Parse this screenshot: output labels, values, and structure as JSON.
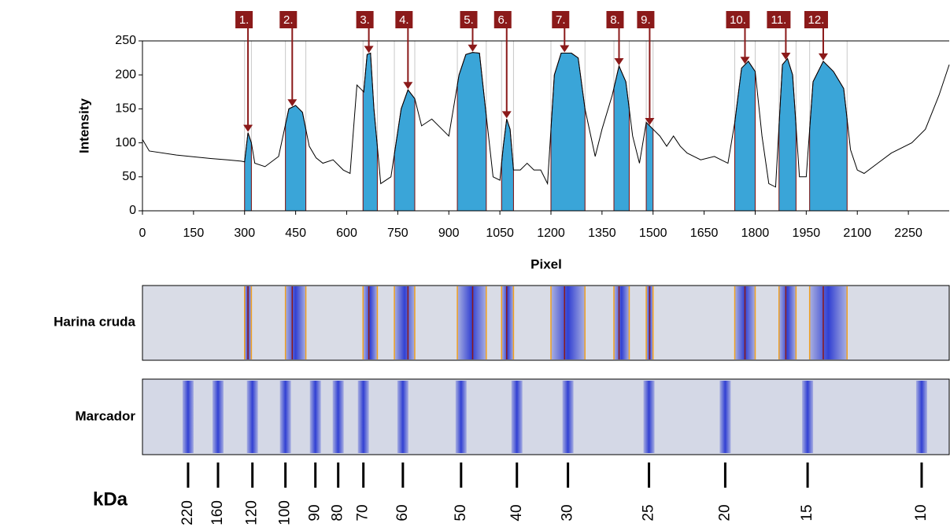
{
  "chart_data": {
    "type": "line",
    "y_label": "Intensity",
    "x_label": "Pixel",
    "xlim": [
      0,
      2370
    ],
    "xticks": [
      0,
      150,
      300,
      450,
      600,
      750,
      900,
      1050,
      1200,
      1350,
      1500,
      1650,
      1800,
      1950,
      2100,
      2250
    ],
    "ylim": [
      0,
      250
    ],
    "yticks": [
      0,
      50,
      100,
      150,
      200,
      250
    ],
    "color": "#000000",
    "peak_color": "#3aa5d8",
    "x": [
      0,
      20,
      100,
      200,
      250,
      290,
      300,
      310,
      320,
      330,
      360,
      400,
      430,
      450,
      470,
      490,
      510,
      530,
      560,
      590,
      610,
      630,
      650,
      660,
      670,
      680,
      700,
      730,
      760,
      780,
      800,
      820,
      850,
      880,
      900,
      930,
      950,
      970,
      990,
      1010,
      1030,
      1050,
      1060,
      1070,
      1080,
      1090,
      1110,
      1130,
      1150,
      1170,
      1190,
      1210,
      1230,
      1260,
      1280,
      1300,
      1330,
      1350,
      1380,
      1400,
      1420,
      1440,
      1460,
      1480,
      1500,
      1520,
      1540,
      1560,
      1580,
      1600,
      1640,
      1680,
      1720,
      1740,
      1760,
      1780,
      1800,
      1820,
      1840,
      1860,
      1880,
      1895,
      1910,
      1930,
      1950,
      1970,
      2000,
      2030,
      2060,
      2080,
      2100,
      2120,
      2160,
      2200,
      2260,
      2300,
      2340,
      2370
    ],
    "values": [
      105,
      88,
      82,
      77,
      75,
      73,
      72,
      115,
      100,
      70,
      65,
      80,
      150,
      155,
      145,
      95,
      78,
      70,
      75,
      60,
      55,
      185,
      175,
      230,
      232,
      150,
      40,
      50,
      150,
      178,
      165,
      125,
      135,
      120,
      110,
      200,
      230,
      233,
      232,
      140,
      50,
      45,
      95,
      135,
      120,
      60,
      60,
      70,
      60,
      60,
      40,
      200,
      232,
      232,
      225,
      150,
      80,
      120,
      170,
      213,
      190,
      110,
      70,
      130,
      120,
      110,
      95,
      110,
      95,
      85,
      75,
      80,
      70,
      130,
      210,
      220,
      205,
      110,
      40,
      35,
      215,
      224,
      200,
      50,
      50,
      190,
      220,
      205,
      180,
      90,
      60,
      55,
      70,
      85,
      100,
      120,
      170,
      215
    ],
    "peaks": [
      {
        "label": "1.",
        "x": 310,
        "start": 300,
        "end": 320
      },
      {
        "label": "2.",
        "x": 440,
        "start": 420,
        "end": 480
      },
      {
        "label": "3.",
        "x": 665,
        "start": 648,
        "end": 690
      },
      {
        "label": "4.",
        "x": 780,
        "start": 740,
        "end": 800
      },
      {
        "label": "5.",
        "x": 970,
        "start": 925,
        "end": 1010
      },
      {
        "label": "6.",
        "x": 1070,
        "start": 1055,
        "end": 1090
      },
      {
        "label": "7.",
        "x": 1240,
        "start": 1200,
        "end": 1300
      },
      {
        "label": "8.",
        "x": 1400,
        "start": 1385,
        "end": 1430
      },
      {
        "label": "9.",
        "x": 1490,
        "start": 1480,
        "end": 1500
      },
      {
        "label": "10.",
        "x": 1770,
        "start": 1740,
        "end": 1800
      },
      {
        "label": "11.",
        "x": 1890,
        "start": 1870,
        "end": 1920
      },
      {
        "label": "12.",
        "x": 2000,
        "start": 1960,
        "end": 2070
      }
    ],
    "lanes": [
      "Harina cruda",
      "Marcador"
    ],
    "marker_unit": "kDa",
    "markers": {
      "x": [
        134,
        222,
        323,
        420,
        508,
        575,
        649,
        765,
        936,
        1100,
        1250,
        1488,
        1712,
        1954,
        2289
      ],
      "labels": [
        220,
        160,
        120,
        100,
        90,
        80,
        70,
        60,
        50,
        40,
        30,
        25,
        20,
        15,
        10
      ]
    }
  }
}
